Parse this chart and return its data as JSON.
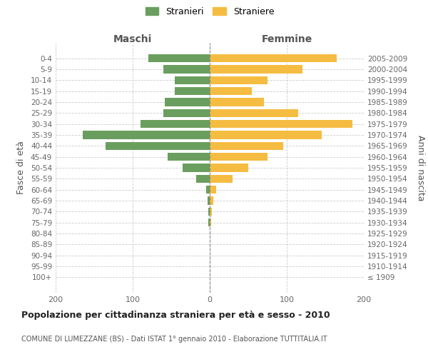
{
  "age_groups": [
    "100+",
    "95-99",
    "90-94",
    "85-89",
    "80-84",
    "75-79",
    "70-74",
    "65-69",
    "60-64",
    "55-59",
    "50-54",
    "45-49",
    "40-44",
    "35-39",
    "30-34",
    "25-29",
    "20-24",
    "15-19",
    "10-14",
    "5-9",
    "0-4"
  ],
  "birth_years": [
    "≤ 1909",
    "1910-1914",
    "1915-1919",
    "1920-1924",
    "1925-1929",
    "1930-1934",
    "1935-1939",
    "1940-1944",
    "1945-1949",
    "1950-1954",
    "1955-1959",
    "1960-1964",
    "1965-1969",
    "1970-1974",
    "1975-1979",
    "1980-1984",
    "1985-1989",
    "1990-1994",
    "1995-1999",
    "2000-2004",
    "2005-2009"
  ],
  "maschi": [
    0,
    0,
    0,
    0,
    0,
    2,
    2,
    3,
    5,
    18,
    35,
    55,
    135,
    165,
    90,
    60,
    58,
    45,
    45,
    60,
    80
  ],
  "femmine": [
    0,
    0,
    0,
    0,
    0,
    2,
    3,
    5,
    8,
    30,
    50,
    75,
    95,
    145,
    185,
    115,
    70,
    55,
    75,
    120,
    165
  ],
  "male_color": "#6a9e5e",
  "female_color": "#f5bc42",
  "title": "Popolazione per cittadinanza straniera per età e sesso - 2010",
  "subtitle": "COMUNE DI LUMEZZANE (BS) - Dati ISTAT 1° gennaio 2010 - Elaborazione TUTTITALIA.IT",
  "ylabel_left": "Fasce di età",
  "ylabel_right": "Anni di nascita",
  "xlabel_left": "Maschi",
  "xlabel_right": "Femmine",
  "legend_male": "Stranieri",
  "legend_female": "Straniere",
  "xlim": 200,
  "background_color": "#ffffff",
  "grid_color": "#cccccc"
}
